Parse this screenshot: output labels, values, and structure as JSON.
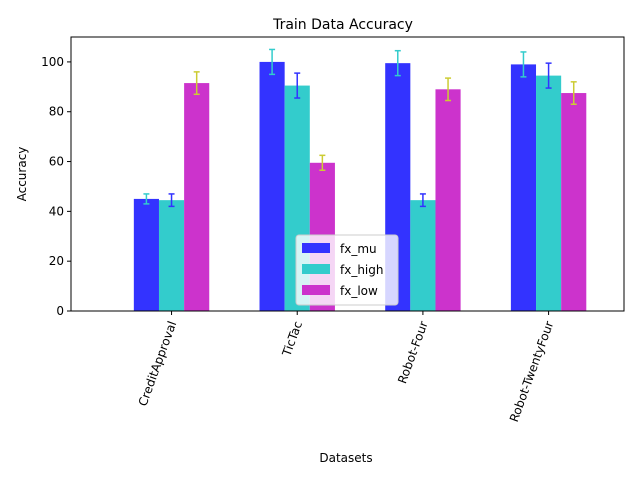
{
  "chart_data": {
    "type": "bar",
    "title": "Train Data Accuracy",
    "xlabel": "Datasets",
    "ylabel": "Accuracy",
    "ylim": [
      0,
      110
    ],
    "yticks": [
      0,
      20,
      40,
      60,
      80,
      100
    ],
    "categories": [
      "CreditApproval",
      "TicTac",
      "Robot-Four",
      "Robot-TwentyFour"
    ],
    "series": [
      {
        "name": "fx_mu",
        "color": "#3333ff",
        "err_color": "#33cccc",
        "values": [
          45,
          100,
          99.5,
          99
        ],
        "errors": [
          2,
          5,
          5,
          5
        ]
      },
      {
        "name": "fx_high",
        "color": "#33cccc",
        "err_color": "#3333ff",
        "values": [
          44.5,
          90.5,
          44.5,
          94.5
        ],
        "errors": [
          2.5,
          5,
          2.5,
          5
        ]
      },
      {
        "name": "fx_low",
        "color": "#cc33cc",
        "err_color": "#cccc33",
        "values": [
          91.5,
          59.5,
          89,
          87.5
        ],
        "errors": [
          4.5,
          3,
          4.5,
          4.5
        ]
      }
    ],
    "legend_position": "lower-center",
    "grid": false
  }
}
